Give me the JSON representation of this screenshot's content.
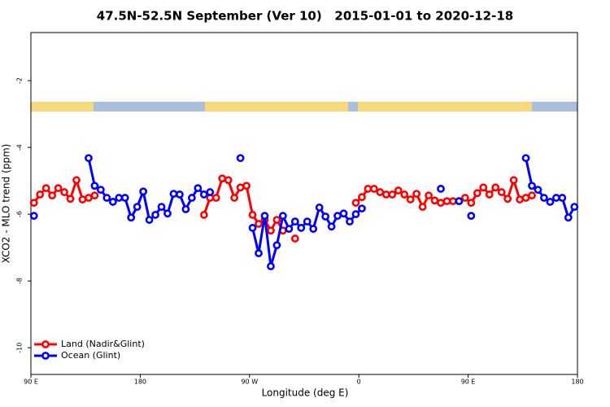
{
  "chart_data": {
    "type": "line",
    "title": "47.5N-52.5N September (Ver 10)   2015-01-01 to 2020-12-18",
    "x_label": "Longitude (deg E)",
    "y_label": "XCO2 - MLO trend (ppm)",
    "xlim": [
      90,
      540
    ],
    "xticks": [
      {
        "value": 90,
        "label": "90 E"
      },
      180,
      {
        "value": 270,
        "label": "90 W"
      },
      {
        "value": 360,
        "label": "0"
      },
      {
        "value": 450,
        "label": "90 E"
      },
      {
        "value": 540,
        "label": "180"
      }
    ],
    "ylim": [
      -10.8,
      -0.56
    ],
    "yticks": [
      -2,
      -4,
      -6,
      -8,
      -10
    ],
    "legend": "bottom-left",
    "x": [
      92.5,
      97.5,
      102.5,
      107.5,
      112.5,
      117.5,
      122.5,
      127.5,
      132.5,
      137.5,
      142.5,
      147.5,
      152.5,
      157.5,
      162.5,
      167.5,
      172.5,
      177.5,
      182.5,
      187.5,
      192.5,
      197.5,
      202.5,
      207.5,
      212.5,
      217.5,
      222.5,
      227.5,
      232.5,
      237.5,
      242.5,
      247.5,
      252.5,
      257.5,
      262.5,
      267.5,
      272.5,
      277.5,
      282.5,
      287.5,
      292.5,
      297.5,
      302.5,
      307.5,
      312.5,
      317.5,
      322.5,
      327.5,
      332.5,
      337.5,
      342.5,
      347.5,
      352.5,
      357.5,
      362.5,
      367.5,
      372.5,
      377.5,
      382.5,
      387.5,
      392.5,
      397.5,
      402.5,
      407.5,
      412.5,
      417.5,
      422.5,
      427.5,
      432.5,
      437.5,
      442.5,
      447.5,
      452.5,
      457.5,
      462.5,
      467.5,
      472.5,
      477.5,
      482.5,
      487.5,
      492.5,
      497.5,
      502.5,
      507.5,
      512.5,
      517.5,
      522.5,
      527.5,
      532.5,
      537.5
    ],
    "series": [
      {
        "name": "Land (Nadir&Glint)",
        "color": "#ff0000",
        "values": [
          -5.66,
          -5.41,
          -5.22,
          -5.44,
          -5.22,
          -5.34,
          -5.54,
          -4.98,
          -5.56,
          -5.51,
          -5.44,
          null,
          null,
          null,
          null,
          null,
          null,
          null,
          null,
          null,
          null,
          null,
          null,
          null,
          null,
          null,
          null,
          null,
          -6.02,
          -5.51,
          -5.51,
          -4.93,
          -4.98,
          -5.51,
          -5.2,
          -5.15,
          -6.02,
          -6.29,
          -6.17,
          -6.49,
          -6.17,
          -6.49,
          null,
          -6.73,
          null,
          null,
          null,
          null,
          null,
          null,
          null,
          null,
          null,
          -5.66,
          -5.49,
          -5.24,
          -5.24,
          -5.34,
          -5.41,
          -5.41,
          -5.29,
          -5.41,
          -5.56,
          -5.39,
          -5.78,
          -5.44,
          -5.59,
          -5.66,
          -5.61,
          -5.61,
          -5.61,
          -5.51,
          -5.66,
          -5.37,
          -5.2,
          -5.41,
          -5.2,
          -5.34,
          -5.54,
          -4.98,
          -5.56,
          -5.51,
          -5.44,
          null,
          null,
          null,
          null,
          null,
          null,
          null
        ]
      },
      {
        "name": "Ocean (Glint)",
        "color": "#0000ff",
        "values": [
          -6.05,
          null,
          null,
          null,
          null,
          null,
          null,
          null,
          null,
          -4.32,
          -5.15,
          -5.27,
          -5.51,
          -5.63,
          -5.51,
          -5.51,
          -6.1,
          -5.78,
          -5.32,
          -6.17,
          -6.02,
          -5.78,
          -5.98,
          -5.39,
          -5.41,
          -5.85,
          -5.51,
          -5.22,
          -5.41,
          -5.34,
          null,
          null,
          null,
          null,
          -4.32,
          null,
          -6.41,
          -7.17,
          -6.05,
          -7.56,
          -6.93,
          -6.05,
          -6.44,
          -6.22,
          -6.41,
          -6.22,
          -6.44,
          -5.8,
          -6.07,
          -6.37,
          -6.05,
          -5.98,
          -6.22,
          -6.0,
          -5.83,
          null,
          null,
          null,
          null,
          null,
          null,
          null,
          null,
          null,
          null,
          null,
          null,
          -5.24,
          null,
          null,
          -5.61,
          null,
          -6.05,
          null,
          null,
          null,
          null,
          null,
          null,
          null,
          null,
          -4.32,
          -5.15,
          -5.27,
          -5.51,
          -5.63,
          -5.51,
          -5.51,
          -6.1,
          -5.78
        ]
      }
    ]
  }
}
